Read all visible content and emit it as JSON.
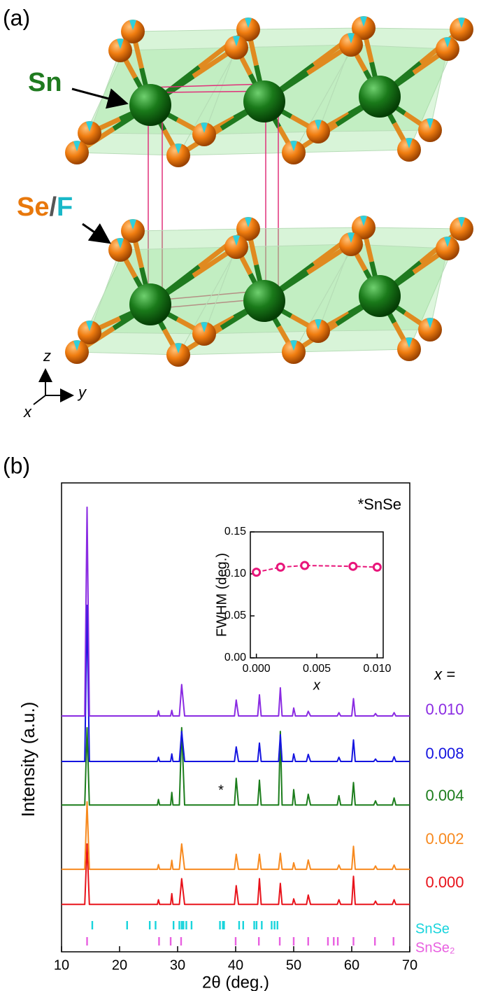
{
  "panel_a": {
    "panel_label": "(a)",
    "labels": [
      "Sn",
      "Se",
      "/",
      "F"
    ],
    "axes": [
      "z",
      "y",
      "x"
    ]
  },
  "chart_data": [
    {
      "type": "line",
      "panel_label": "(b)",
      "xlabel": "2θ (deg.)",
      "ylabel": "Intensity (a.u.)",
      "xlim": [
        10,
        70
      ],
      "xticks": [
        10,
        20,
        30,
        40,
        50,
        60,
        70
      ],
      "ylim": [
        0,
        100
      ],
      "legend_title": "x =",
      "annotations": [
        "*SnSe",
        "*"
      ],
      "x": [
        10,
        14.0,
        14.4,
        14.8,
        26.5,
        26.7,
        26.9,
        28.8,
        29.0,
        29.2,
        30.3,
        30.7,
        31.2,
        39.8,
        40.1,
        40.5,
        43.8,
        44.1,
        44.4,
        47.4,
        47.7,
        48.0,
        49.8,
        50.0,
        50.3,
        52.2,
        52.5,
        52.9,
        57.5,
        57.8,
        58.1,
        60.0,
        60.3,
        60.6,
        63.8,
        64.1,
        64.4,
        67.0,
        67.3,
        67.6,
        70
      ],
      "series": [
        {
          "name": "0.000",
          "color": "#e8131b",
          "values": [
            10.1,
            10.1,
            23,
            10.1,
            10.1,
            11.1,
            10.1,
            10.1,
            12.4,
            10.1,
            10.1,
            15.6,
            10.1,
            10.1,
            14.1,
            10.1,
            10.1,
            15.6,
            10.1,
            10.1,
            14.6,
            10.1,
            10.1,
            11.3,
            10.1,
            10.1,
            12.1,
            10.1,
            10.1,
            11.1,
            10.1,
            10.1,
            16.1,
            10.1,
            10.1,
            10.8,
            10.1,
            10.1,
            11.1,
            10.1,
            10.1
          ]
        },
        {
          "name": "0.002",
          "color": "#f7891e",
          "values": [
            17.6,
            17.6,
            32,
            17.6,
            17.6,
            18.6,
            17.6,
            17.6,
            19.5,
            17.6,
            17.6,
            23,
            17.6,
            17.6,
            20.8,
            17.6,
            17.6,
            20.8,
            17.6,
            17.6,
            21,
            17.6,
            17.6,
            19,
            17.6,
            17.6,
            19.6,
            17.6,
            17.6,
            18.5,
            17.6,
            17.6,
            22.5,
            17.6,
            17.6,
            18.3,
            17.6,
            17.6,
            18.5,
            17.6,
            17.6
          ]
        },
        {
          "name": "0.004",
          "color": "#1c7d1c",
          "values": [
            31.3,
            31.3,
            47.8,
            31.3,
            31.3,
            32.5,
            31.3,
            31.3,
            34,
            31.3,
            31.3,
            47.8,
            31.3,
            31.3,
            37,
            31.3,
            31.3,
            36.6,
            31.3,
            31.3,
            47,
            31.3,
            31.3,
            34.6,
            31.3,
            31.3,
            33.6,
            31.3,
            31.3,
            33.3,
            31.3,
            31.3,
            36.1,
            31.3,
            31.3,
            32.2,
            31.3,
            31.3,
            32.8,
            31.3,
            31.3
          ]
        },
        {
          "name": "0.008",
          "color": "#1414e0",
          "values": [
            40.6,
            40.6,
            73.9,
            40.6,
            40.6,
            41.5,
            40.6,
            40.6,
            42.2,
            40.6,
            40.6,
            47,
            40.6,
            40.6,
            43.7,
            40.6,
            40.6,
            44.5,
            40.6,
            40.6,
            46.3,
            40.6,
            40.6,
            42.2,
            40.6,
            40.6,
            42.1,
            40.6,
            40.6,
            41.5,
            40.6,
            40.6,
            45.2,
            40.6,
            40.6,
            41.1,
            40.6,
            40.6,
            41.6,
            40.6,
            40.6
          ]
        },
        {
          "name": "0.010",
          "color": "#8a2be2",
          "values": [
            50.3,
            50.3,
            94.8,
            50.3,
            50.3,
            51.4,
            50.3,
            50.3,
            51.5,
            50.3,
            50.3,
            57,
            50.3,
            50.3,
            53.7,
            50.3,
            50.3,
            54.8,
            50.3,
            50.3,
            56.3,
            50.3,
            50.3,
            52,
            50.3,
            50.3,
            51.3,
            50.3,
            50.3,
            51,
            50.3,
            50.3,
            54,
            50.3,
            50.3,
            50.8,
            50.3,
            50.3,
            51,
            50.3,
            50.3
          ]
        }
      ],
      "reference_peaks": [
        {
          "name": "SnSe",
          "color": "#18d4dc",
          "positions": [
            15.3,
            21.3,
            25.2,
            26.2,
            29.3,
            30.3,
            30.7,
            31.0,
            31.5,
            32.4,
            37.3,
            37.8,
            38.0,
            40.6,
            41.3,
            43.2,
            43.6,
            44.5,
            46.2,
            46.7,
            47.2
          ]
        },
        {
          "name": "SnSe₂",
          "color": "#e860e0",
          "positions": [
            14.4,
            26.8,
            28.8,
            30.6,
            40.0,
            44.0,
            47.6,
            50.0,
            52.5,
            55.9,
            56.9,
            57.6,
            60.3,
            64.0,
            67.2
          ]
        }
      ]
    },
    {
      "type": "scatter",
      "xlabel": "x",
      "ylabel": "FWHM (deg.)",
      "xlim": [
        -0.0005,
        0.0105
      ],
      "xticks": [
        {
          "value": 0,
          "label": "0.000"
        },
        {
          "value": 0.005,
          "label": "0.005"
        },
        {
          "value": 0.01,
          "label": "0.010"
        }
      ],
      "ylim": [
        0,
        0.15
      ],
      "yticks": [
        {
          "value": 0,
          "label": "0.00"
        },
        0.05,
        {
          "value": 0.1,
          "label": "0.10"
        },
        0.15
      ],
      "color": "#e8157a",
      "x": [
        0,
        0.002,
        0.004,
        0.008,
        0.01
      ],
      "values": [
        0.102,
        0.108,
        0.11,
        0.109,
        0.108
      ]
    }
  ]
}
